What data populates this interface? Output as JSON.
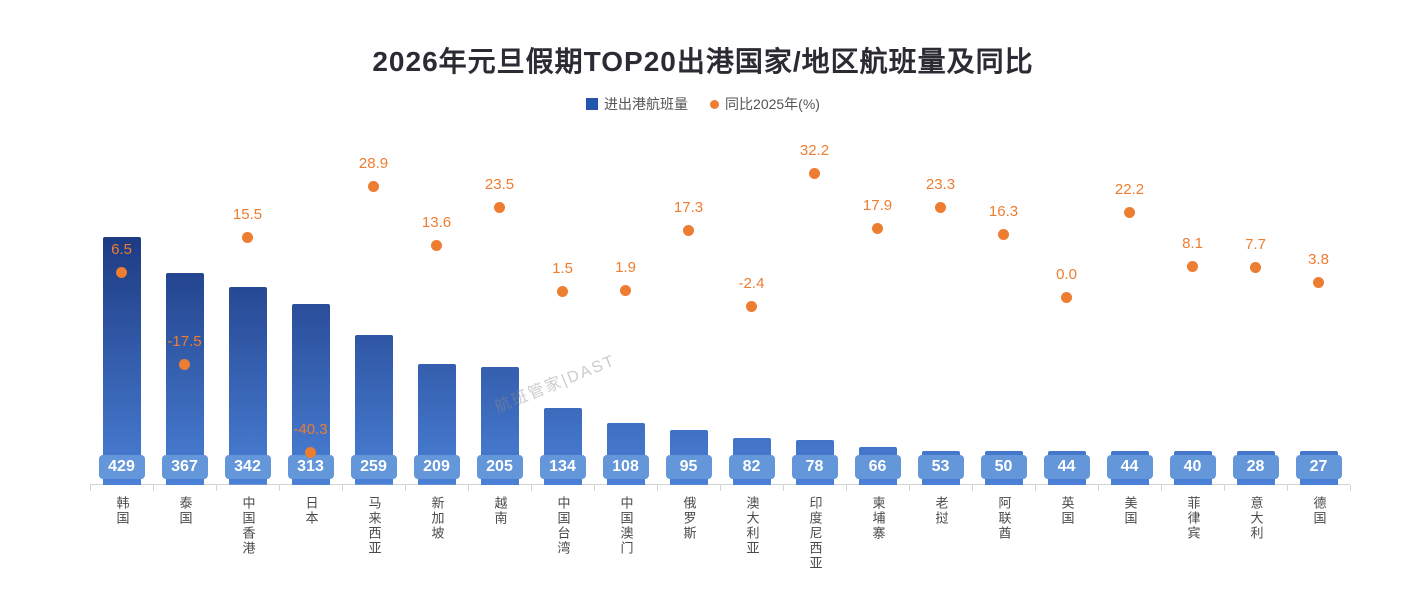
{
  "title": "2026年元旦假期TOP20出港国家/地区航班量及同比",
  "watermark": "航班管家|DAST",
  "chart_data": {
    "type": "bar",
    "title": "2026年元旦假期TOP20出港国家/地区航班量及同比",
    "categories": [
      "韩国",
      "泰国",
      "中国香港",
      "日本",
      "马来西亚",
      "新加坡",
      "越南",
      "中国台湾",
      "中国澳门",
      "俄罗斯",
      "澳大利亚",
      "印度尼西亚",
      "柬埔寨",
      "老挝",
      "阿联酋",
      "英国",
      "美国",
      "菲律宾",
      "意大利",
      "德国"
    ],
    "series": [
      {
        "name": "进出港航班量",
        "type": "bar",
        "values": [
          429,
          367,
          342,
          313,
          259,
          209,
          205,
          134,
          108,
          95,
          82,
          78,
          66,
          53,
          50,
          44,
          44,
          40,
          28,
          27
        ]
      },
      {
        "name": "同比2025年(%)",
        "type": "scatter",
        "values": [
          6.5,
          -17.5,
          15.5,
          -40.3,
          28.9,
          13.6,
          23.5,
          1.5,
          1.9,
          17.3,
          -2.4,
          32.2,
          17.9,
          23.3,
          16.3,
          0.0,
          22.2,
          8.1,
          7.7,
          3.8
        ]
      }
    ],
    "legend_position": "top",
    "grid": false,
    "xlabel": "",
    "ylabel": "",
    "colors": {
      "bar_gradient_top": "#1d3a82",
      "bar_gradient_bottom": "#4a80d6",
      "value_badge": "#6496da",
      "scatter": "#ed7d31"
    }
  }
}
